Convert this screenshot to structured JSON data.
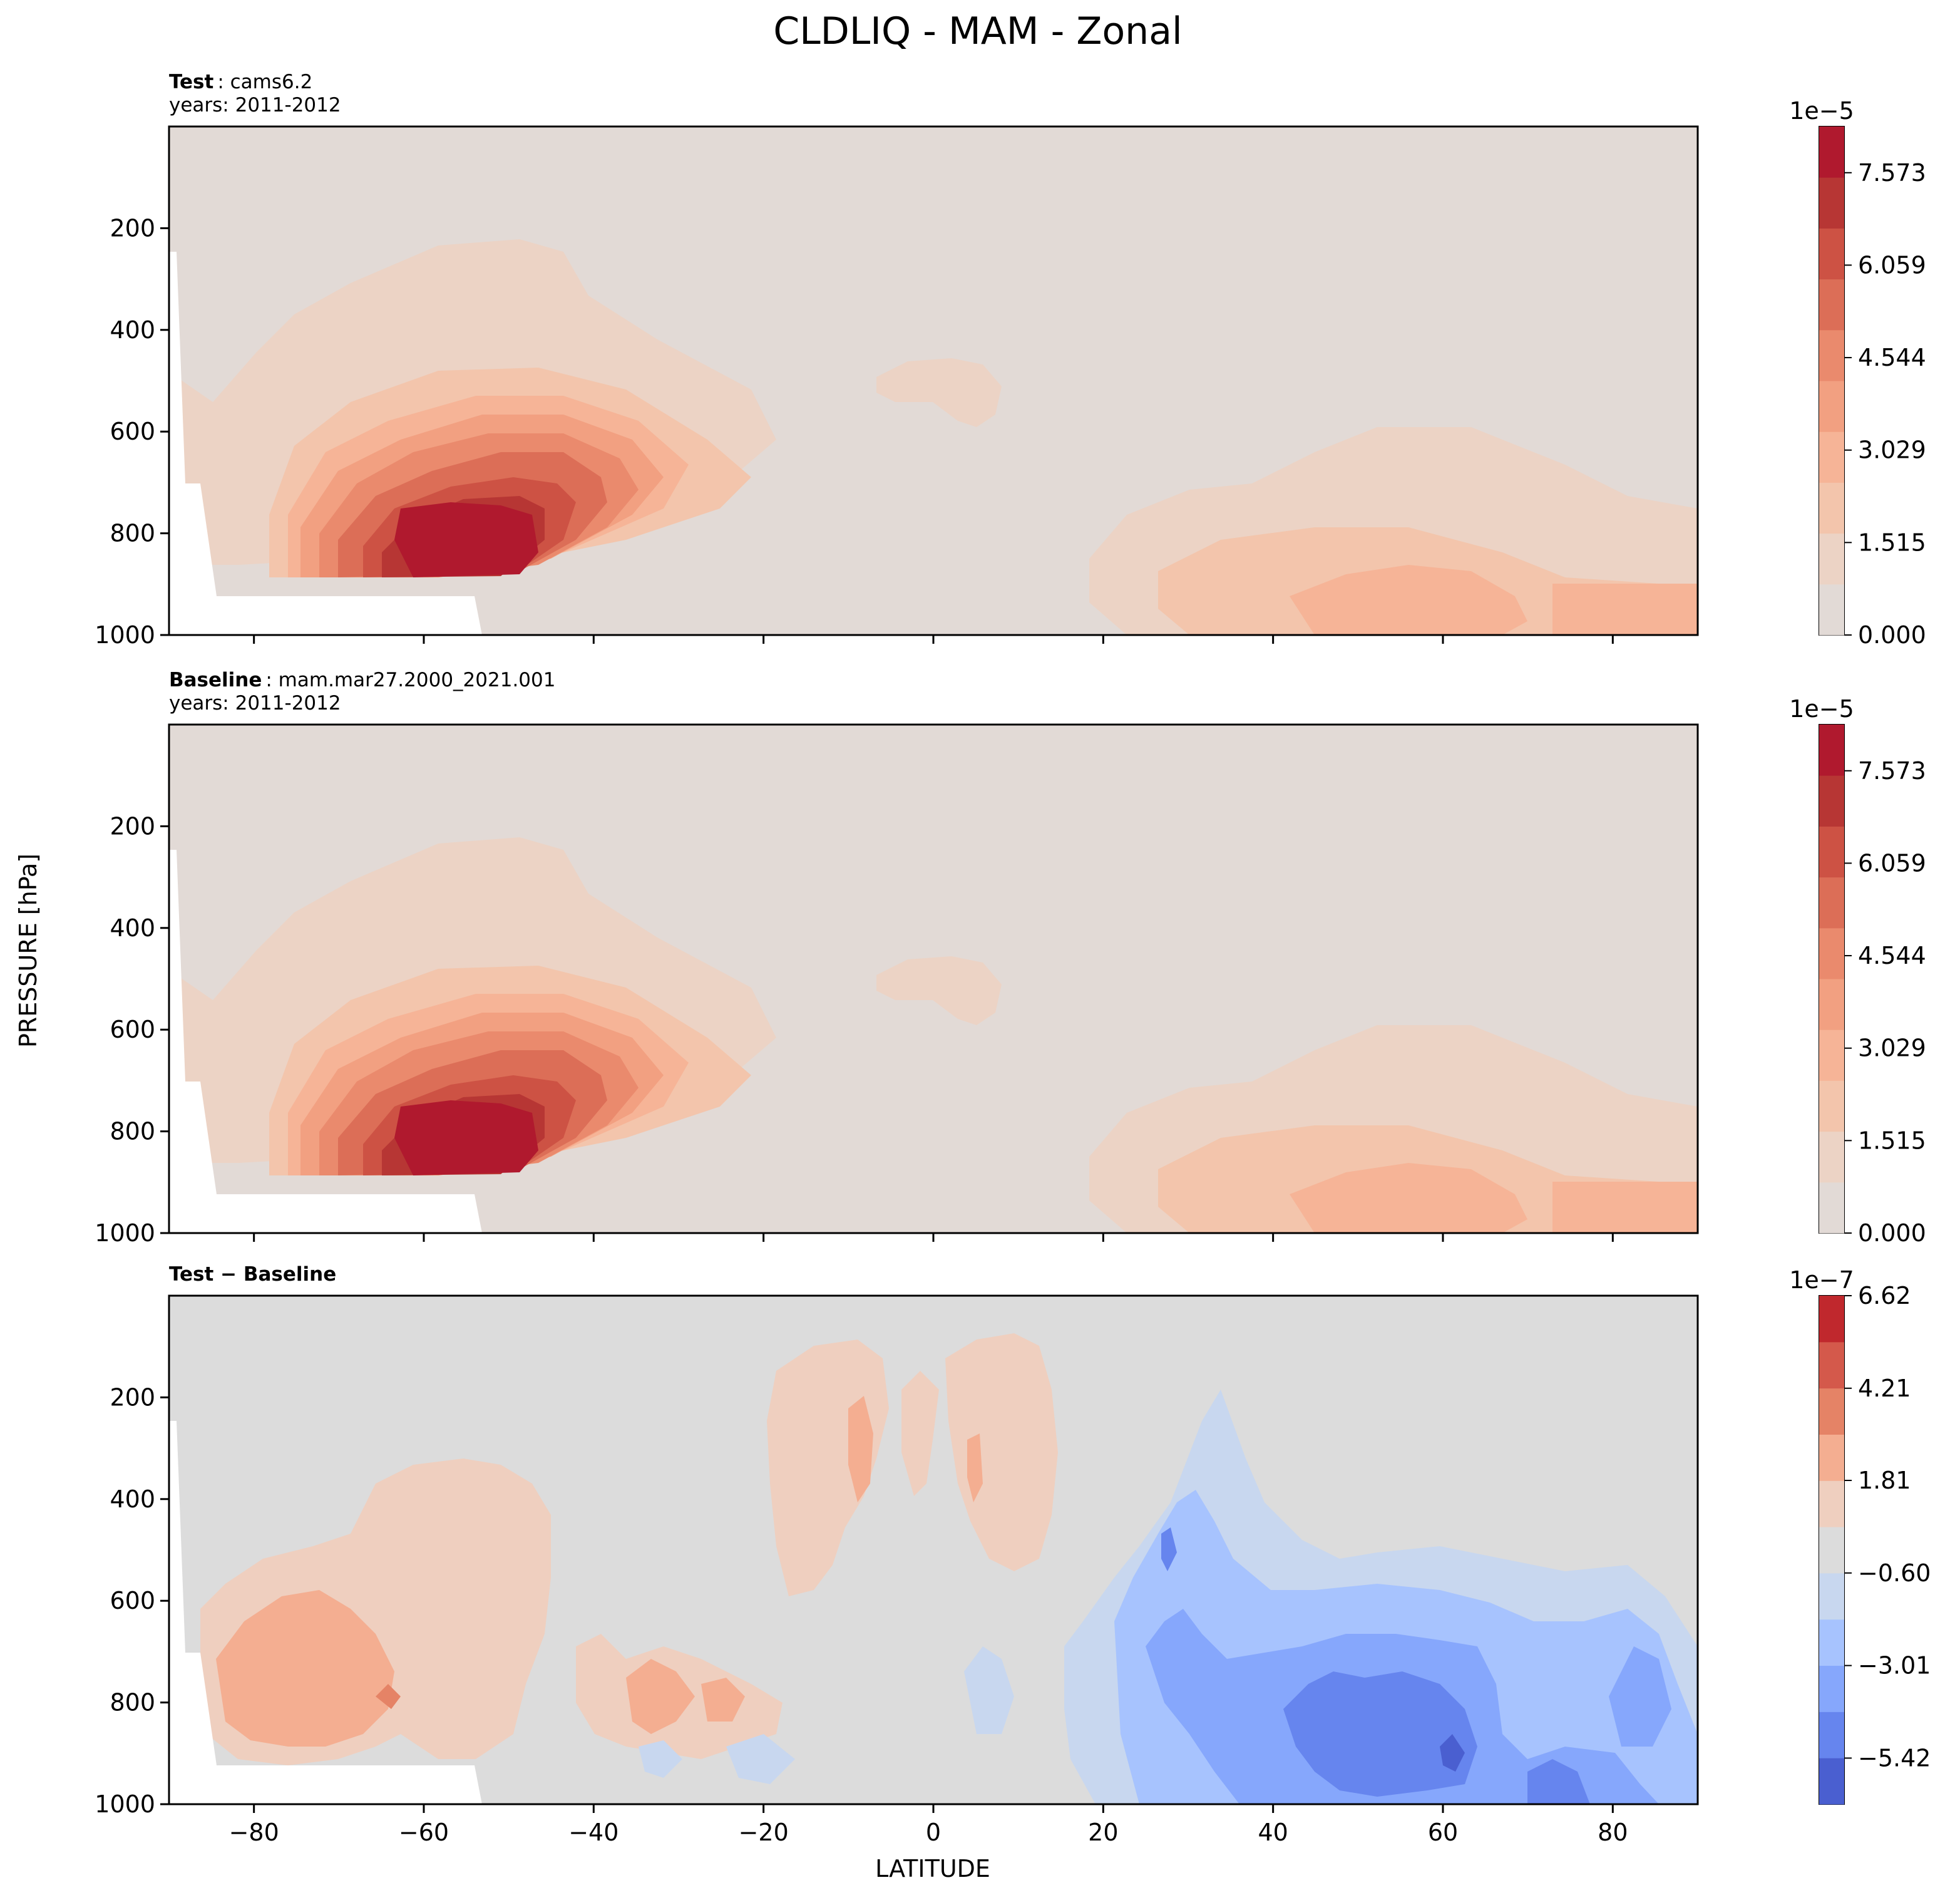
{
  "figure": {
    "title": "CLDLIQ - MAM - Zonal",
    "xlabel": "LATITUDE",
    "ylabel": "PRESSURE [hPa]"
  },
  "colors": {
    "background": "#ffffff",
    "level_marks": "#ff0000",
    "seq_scale": [
      "#e2dad6",
      "#ecd3c5",
      "#f3c5ac",
      "#f6b497",
      "#f2a081",
      "#ea8a6d",
      "#dc6e57",
      "#cd5244",
      "#b73634",
      "#b0192e"
    ],
    "diff_scale": [
      "#4a5fd0",
      "#6685ee",
      "#86a7fc",
      "#a7c3fe",
      "#c8d7ef",
      "#dcdcdc",
      "#efcfbf",
      "#f4ae91",
      "#e58366",
      "#d4594b",
      "#c0282d"
    ]
  },
  "chart_data": [
    {
      "type": "contour",
      "panel": "test",
      "label_bold": "Test",
      "label_text": ": cams6.2",
      "years": "years: 2011-2012",
      "xlim": [
        -90,
        90
      ],
      "ylim": [
        1000,
        0
      ],
      "x_ticks": [
        "−80",
        "−60",
        "−40",
        "−20",
        "0",
        "20",
        "40",
        "60",
        "80"
      ],
      "x_tick_values": [
        -80,
        -60,
        -40,
        -20,
        0,
        20,
        40,
        60,
        80
      ],
      "y_ticks": [
        "200",
        "400",
        "600",
        "800",
        "1000"
      ],
      "y_tick_values": [
        200,
        400,
        600,
        800,
        1000
      ],
      "colorbar": {
        "exponent": "1e−5",
        "range": [
          0,
          8.33
        ],
        "ticks": [
          "0.000",
          "1.515",
          "3.029",
          "4.544",
          "6.059",
          "7.573"
        ],
        "tick_values": [
          0,
          1.515,
          3.029,
          4.544,
          6.059,
          7.573
        ]
      },
      "features": [
        {
          "name": "southern-ocean-max",
          "lat_range": [
            -75,
            -40
          ],
          "p_range": [
            600,
            960
          ],
          "peak_lat": -58,
          "peak_p": 880,
          "peak_value": 8.3
        },
        {
          "name": "tropical-upper",
          "lat_range": [
            -7,
            9
          ],
          "p_range": [
            460,
            580
          ],
          "value": 1.0
        },
        {
          "name": "northern-max",
          "lat_range": [
            20,
            90
          ],
          "p_range": [
            650,
            1000
          ],
          "peak_value": 3.5
        }
      ],
      "missing_region": "below surface near Antarctica (lat < -54)"
    },
    {
      "type": "contour",
      "panel": "baseline",
      "label_bold": "Baseline",
      "label_text": ": mam.mar27.2000_2021.001",
      "years": "years: 2011-2012",
      "xlim": [
        -90,
        90
      ],
      "ylim": [
        1000,
        0
      ],
      "x_ticks": [
        "−80",
        "−60",
        "−40",
        "−20",
        "0",
        "20",
        "40",
        "60",
        "80"
      ],
      "x_tick_values": [
        -80,
        -60,
        -40,
        -20,
        0,
        20,
        40,
        60,
        80
      ],
      "y_ticks": [
        "200",
        "400",
        "600",
        "800",
        "1000"
      ],
      "y_tick_values": [
        200,
        400,
        600,
        800,
        1000
      ],
      "colorbar": {
        "exponent": "1e−5",
        "range": [
          0,
          8.33
        ],
        "ticks": [
          "0.000",
          "1.515",
          "3.029",
          "4.544",
          "6.059",
          "7.573"
        ],
        "tick_values": [
          0,
          1.515,
          3.029,
          4.544,
          6.059,
          7.573
        ]
      },
      "features": [
        {
          "name": "southern-ocean-max",
          "lat_range": [
            -75,
            -40
          ],
          "p_range": [
            600,
            960
          ],
          "peak_lat": -58,
          "peak_p": 880,
          "peak_value": 8.3
        },
        {
          "name": "tropical-upper",
          "lat_range": [
            -7,
            9
          ],
          "p_range": [
            460,
            580
          ],
          "value": 1.0
        },
        {
          "name": "northern-max",
          "lat_range": [
            20,
            90
          ],
          "p_range": [
            650,
            1000
          ],
          "peak_value": 3.5
        }
      ],
      "missing_region": "below surface near Antarctica (lat < -54)"
    },
    {
      "type": "contour",
      "panel": "difference",
      "label_bold": "Test − Baseline",
      "xlim": [
        -90,
        90
      ],
      "ylim": [
        1000,
        0
      ],
      "x_ticks": [
        "−80",
        "−60",
        "−40",
        "−20",
        "0",
        "20",
        "40",
        "60",
        "80"
      ],
      "x_tick_values": [
        -80,
        -60,
        -40,
        -20,
        0,
        20,
        40,
        60,
        80
      ],
      "y_ticks": [
        "200",
        "400",
        "600",
        "800",
        "1000"
      ],
      "y_tick_values": [
        200,
        400,
        600,
        800,
        1000
      ],
      "colorbar": {
        "exponent": "1e−7",
        "range": [
          -6.62,
          6.62
        ],
        "ticks": [
          "−5.42",
          "−3.01",
          "−0.60",
          "1.81",
          "4.21",
          "6.62"
        ],
        "tick_values": [
          -5.42,
          -3.01,
          -0.6,
          1.81,
          4.21,
          6.62
        ]
      },
      "features": [
        {
          "name": "southern-positive",
          "lat_range": [
            -85,
            -45
          ],
          "p_range": [
            430,
            940
          ],
          "peak_value": 3.0
        },
        {
          "name": "tropical-positive",
          "lat_range": [
            -18,
            15
          ],
          "p_range": [
            320,
            720
          ],
          "peak_value": 3.0
        },
        {
          "name": "northern-negative",
          "lat_range": [
            15,
            90
          ],
          "p_range": [
            480,
            1000
          ],
          "peak_value": -6.0
        }
      ],
      "missing_region": "below surface near Antarctica (lat < -54)"
    }
  ]
}
